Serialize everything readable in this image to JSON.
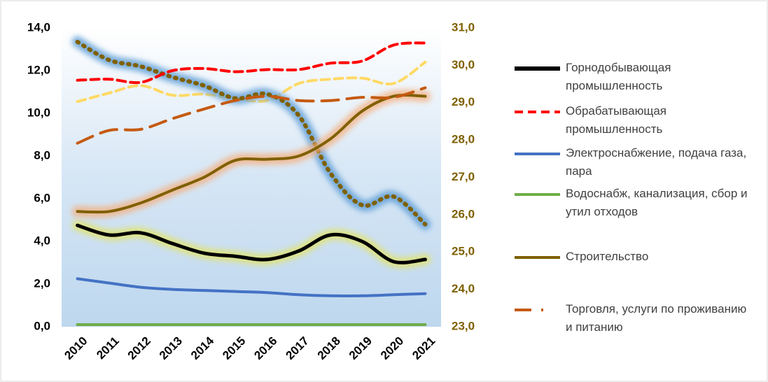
{
  "chart_data": {
    "type": "line",
    "categories": [
      "2010",
      "2011",
      "2012",
      "2013",
      "2014",
      "2015",
      "2016",
      "2017",
      "2018",
      "2019",
      "2020",
      "2021"
    ],
    "ylim": [
      0,
      14
    ],
    "yticks": [
      {
        "value": 0,
        "label": "0,0"
      },
      {
        "value": 2,
        "label": "2,0"
      },
      {
        "value": 4,
        "label": "4,0"
      },
      {
        "value": 6,
        "label": "6,0"
      },
      {
        "value": 8,
        "label": "8,0"
      },
      {
        "value": 10,
        "label": "10,0"
      },
      {
        "value": 12,
        "label": "12,0"
      },
      {
        "value": 14,
        "label": "14,0"
      }
    ],
    "y2lim": [
      23,
      31
    ],
    "y2ticks": [
      {
        "value": 23,
        "label": "23,0"
      },
      {
        "value": 24,
        "label": "24,0"
      },
      {
        "value": 25,
        "label": "25,0"
      },
      {
        "value": 26,
        "label": "26,0"
      },
      {
        "value": 27,
        "label": "27,0"
      },
      {
        "value": 28,
        "label": "28,0"
      },
      {
        "value": 29,
        "label": "29,0"
      },
      {
        "value": 30,
        "label": "30,0"
      },
      {
        "value": 31,
        "label": "31,0"
      }
    ],
    "y2color": "#7f6000",
    "series": [
      {
        "color": "#ffd966",
        "dash": "dash",
        "values": [
          10.55,
          10.95,
          11.3,
          10.85,
          10.9,
          10.7,
          10.6,
          11.4,
          11.6,
          11.65,
          11.4,
          12.4
        ]
      },
      {
        "color": "#7f6000",
        "dash": "dot",
        "glow": "#5b9bd5",
        "values": [
          13.35,
          12.5,
          12.2,
          11.7,
          11.3,
          10.7,
          10.9,
          9.9,
          7.2,
          5.7,
          6.1,
          4.8
        ]
      },
      {
        "name": "Горнодобывающая промышленность",
        "color": "#000000",
        "dash": "solid",
        "glow": "#e2e36a",
        "values": [
          4.75,
          4.3,
          4.4,
          3.9,
          3.45,
          3.3,
          3.15,
          3.55,
          4.3,
          4.0,
          3.05,
          3.15
        ]
      },
      {
        "name": "Обрабатывающая промышленность",
        "color": "#ff0000",
        "dash": "dash",
        "values": [
          11.55,
          11.6,
          11.45,
          12.0,
          12.1,
          11.95,
          12.05,
          12.05,
          12.35,
          12.45,
          13.2,
          13.3
        ]
      },
      {
        "name": "Электроснабжение, подача газа, пара",
        "color": "#4472c4",
        "dash": "solid",
        "values": [
          2.25,
          2.05,
          1.85,
          1.75,
          1.7,
          1.65,
          1.6,
          1.5,
          1.45,
          1.45,
          1.5,
          1.55
        ]
      },
      {
        "name": "Водоснабж, канализация, сбор и утил отходов",
        "color": "#70ad47",
        "dash": "solid",
        "glow": "#a9d18e",
        "values": [
          0.1,
          0.1,
          0.1,
          0.1,
          0.1,
          0.1,
          0.1,
          0.1,
          0.1,
          0.1,
          0.1,
          0.1
        ]
      },
      {
        "name": "Строительство",
        "color": "#7f6000",
        "dash": "solid",
        "glow": "#f4b183",
        "values": [
          5.4,
          5.4,
          5.8,
          6.4,
          7.0,
          7.8,
          7.85,
          8.0,
          8.8,
          10.1,
          10.8,
          10.8
        ]
      },
      {
        "name": "Торговля, услуги по проживанию и питанию",
        "color": "#c55a11",
        "dash": "longdash",
        "values": [
          8.6,
          9.2,
          9.25,
          9.75,
          10.2,
          10.6,
          10.8,
          10.6,
          10.6,
          10.75,
          10.75,
          11.2
        ]
      }
    ]
  }
}
